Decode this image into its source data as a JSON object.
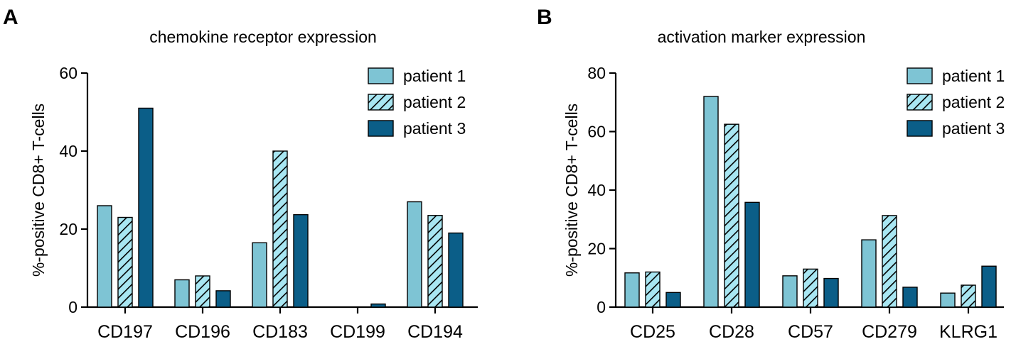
{
  "colors": {
    "patient1": "#7ec4d4",
    "patient2_fill": "#a8e6f2",
    "patient2_hatch": "#000000",
    "patient3": "#0b5e88"
  },
  "chart_data": [
    {
      "panel": "A",
      "type": "bar",
      "title": "chemokine receptor expression",
      "xlabel": "",
      "ylabel": "%-positive CD8+ T-cells",
      "ylim": [
        0,
        60
      ],
      "yticks": [
        0,
        20,
        40,
        60
      ],
      "categories": [
        "CD197",
        "CD196",
        "CD183",
        "CD199",
        "CD194"
      ],
      "series": [
        {
          "name": "patient 1",
          "style": "solid-light",
          "values": [
            26,
            7,
            16.5,
            0,
            27
          ]
        },
        {
          "name": "patient 2",
          "style": "hatched",
          "values": [
            23,
            8,
            40,
            0,
            23.5
          ]
        },
        {
          "name": "patient 3",
          "style": "solid-dark",
          "values": [
            51,
            4.2,
            23.7,
            0.8,
            19
          ]
        }
      ],
      "legend_position": "top-right"
    },
    {
      "panel": "B",
      "type": "bar",
      "title": "activation marker expression",
      "xlabel": "",
      "ylabel": "%-positive CD8+ T-cells",
      "ylim": [
        0,
        80
      ],
      "yticks": [
        0,
        20,
        40,
        60,
        80
      ],
      "categories": [
        "CD25",
        "CD28",
        "CD57",
        "CD279",
        "KLRG1"
      ],
      "series": [
        {
          "name": "patient 1",
          "style": "solid-light",
          "values": [
            11.7,
            72,
            10.7,
            23,
            4.8
          ]
        },
        {
          "name": "patient 2",
          "style": "hatched",
          "values": [
            12,
            62.5,
            13,
            31.3,
            7.5
          ]
        },
        {
          "name": "patient 3",
          "style": "solid-dark",
          "values": [
            5,
            35.8,
            9.8,
            6.8,
            14
          ]
        }
      ],
      "legend_position": "top-right"
    }
  ]
}
